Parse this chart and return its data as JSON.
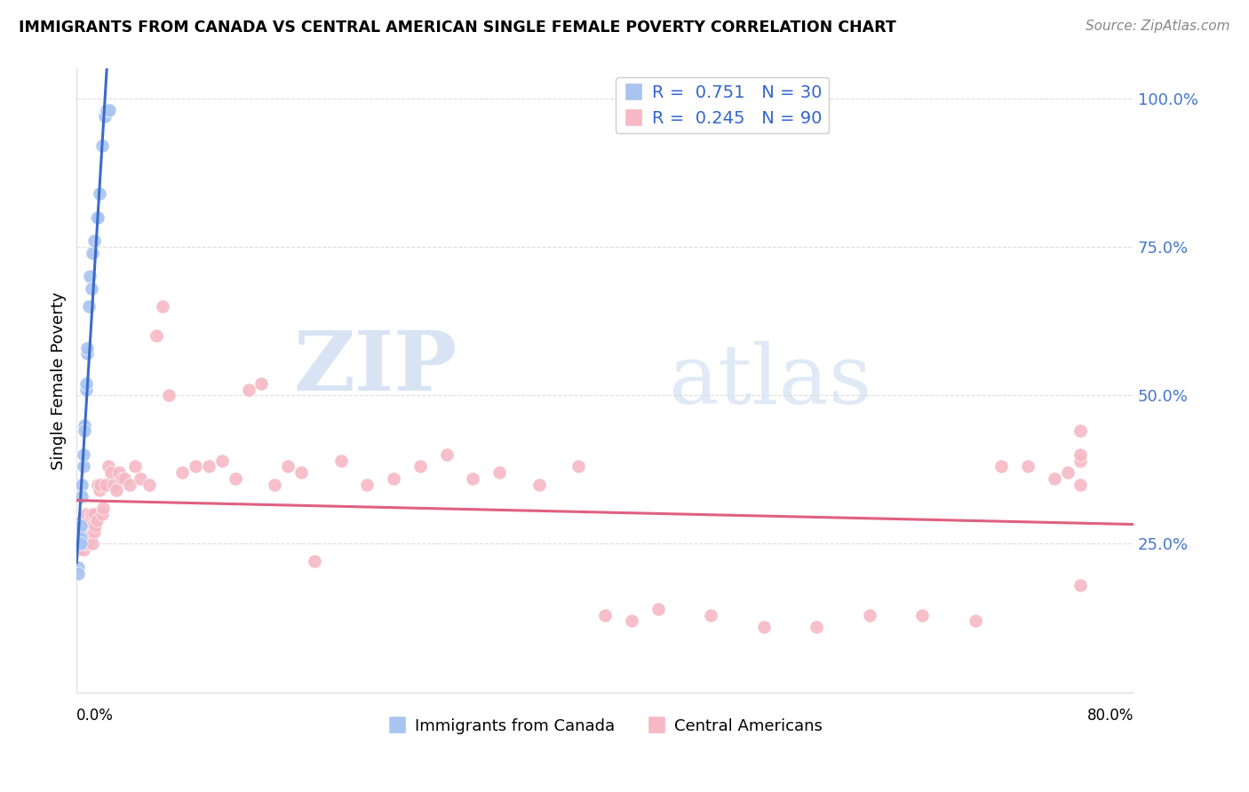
{
  "title": "IMMIGRANTS FROM CANADA VS CENTRAL AMERICAN SINGLE FEMALE POVERTY CORRELATION CHART",
  "source": "Source: ZipAtlas.com",
  "ylabel": "Single Female Poverty",
  "xlim": [
    0.0,
    0.8
  ],
  "ylim": [
    0.0,
    1.05
  ],
  "yticks": [
    0.0,
    0.25,
    0.5,
    0.75,
    1.0
  ],
  "ytick_labels": [
    "",
    "25.0%",
    "50.0%",
    "75.0%",
    "100.0%"
  ],
  "xtick_positions": [
    0.0,
    0.16,
    0.32,
    0.48,
    0.64,
    0.8
  ],
  "blue_R": 0.751,
  "blue_N": 30,
  "pink_R": 0.245,
  "pink_N": 90,
  "blue_color": "#a8c4f0",
  "pink_color": "#f5b8c4",
  "line_blue": "#3a6bc9",
  "line_pink": "#e06080",
  "legend_label_blue": "Immigrants from Canada",
  "legend_label_pink": "Central Americans",
  "watermark_zip": "ZIP",
  "watermark_atlas": "atlas",
  "blue_points_x": [
    0.001,
    0.001,
    0.002,
    0.002,
    0.002,
    0.003,
    0.003,
    0.003,
    0.004,
    0.004,
    0.005,
    0.005,
    0.006,
    0.006,
    0.007,
    0.007,
    0.008,
    0.008,
    0.009,
    0.01,
    0.011,
    0.012,
    0.013,
    0.015,
    0.016,
    0.017,
    0.019,
    0.021,
    0.023,
    0.025
  ],
  "blue_points_y": [
    0.21,
    0.2,
    0.26,
    0.27,
    0.25,
    0.28,
    0.26,
    0.25,
    0.35,
    0.33,
    0.38,
    0.4,
    0.45,
    0.44,
    0.51,
    0.52,
    0.57,
    0.58,
    0.65,
    0.7,
    0.68,
    0.74,
    0.76,
    0.8,
    0.8,
    0.84,
    0.92,
    0.97,
    0.98,
    0.98
  ],
  "pink_points_x": [
    0.001,
    0.001,
    0.001,
    0.002,
    0.002,
    0.002,
    0.003,
    0.003,
    0.003,
    0.004,
    0.004,
    0.004,
    0.005,
    0.005,
    0.005,
    0.006,
    0.006,
    0.007,
    0.007,
    0.008,
    0.008,
    0.009,
    0.009,
    0.01,
    0.01,
    0.011,
    0.012,
    0.012,
    0.013,
    0.013,
    0.014,
    0.015,
    0.016,
    0.017,
    0.018,
    0.019,
    0.02,
    0.022,
    0.024,
    0.026,
    0.028,
    0.03,
    0.032,
    0.034,
    0.036,
    0.04,
    0.044,
    0.048,
    0.055,
    0.06,
    0.065,
    0.07,
    0.08,
    0.09,
    0.1,
    0.11,
    0.12,
    0.13,
    0.14,
    0.15,
    0.16,
    0.17,
    0.18,
    0.2,
    0.22,
    0.24,
    0.26,
    0.28,
    0.3,
    0.32,
    0.35,
    0.38,
    0.4,
    0.42,
    0.44,
    0.48,
    0.52,
    0.56,
    0.6,
    0.64,
    0.68,
    0.7,
    0.72,
    0.74,
    0.75,
    0.76,
    0.76,
    0.76,
    0.76,
    0.76
  ],
  "pink_points_y": [
    0.26,
    0.25,
    0.24,
    0.27,
    0.25,
    0.24,
    0.28,
    0.27,
    0.25,
    0.29,
    0.27,
    0.25,
    0.28,
    0.26,
    0.24,
    0.27,
    0.25,
    0.3,
    0.28,
    0.27,
    0.25,
    0.28,
    0.26,
    0.29,
    0.27,
    0.3,
    0.28,
    0.25,
    0.3,
    0.27,
    0.28,
    0.29,
    0.35,
    0.34,
    0.35,
    0.3,
    0.31,
    0.35,
    0.38,
    0.37,
    0.35,
    0.34,
    0.37,
    0.36,
    0.36,
    0.35,
    0.38,
    0.36,
    0.35,
    0.6,
    0.65,
    0.5,
    0.37,
    0.38,
    0.38,
    0.39,
    0.36,
    0.51,
    0.52,
    0.35,
    0.38,
    0.37,
    0.22,
    0.39,
    0.35,
    0.36,
    0.38,
    0.4,
    0.36,
    0.37,
    0.35,
    0.38,
    0.13,
    0.12,
    0.14,
    0.13,
    0.11,
    0.11,
    0.13,
    0.13,
    0.12,
    0.38,
    0.38,
    0.36,
    0.37,
    0.39,
    0.4,
    0.35,
    0.18,
    0.44
  ]
}
